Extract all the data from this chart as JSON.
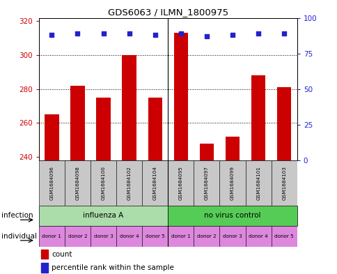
{
  "title": "GDS6063 / ILMN_1800975",
  "samples": [
    "GSM1684096",
    "GSM1684098",
    "GSM1684100",
    "GSM1684102",
    "GSM1684104",
    "GSM1684095",
    "GSM1684097",
    "GSM1684099",
    "GSM1684101",
    "GSM1684103"
  ],
  "counts": [
    265,
    282,
    275,
    300,
    275,
    313,
    248,
    252,
    288,
    281
  ],
  "percentile_ranks": [
    88,
    89,
    89,
    89,
    88,
    89,
    87,
    88,
    89,
    89
  ],
  "ylim_left": [
    238,
    322
  ],
  "ylim_right": [
    0,
    100
  ],
  "yticks_left": [
    240,
    260,
    280,
    300,
    320
  ],
  "yticks_right": [
    0,
    25,
    50,
    75,
    100
  ],
  "bar_color": "#cc0000",
  "dot_color": "#2222cc",
  "infection_groups": [
    {
      "label": "influenza A",
      "start": 0,
      "end": 5,
      "color": "#aaddaa"
    },
    {
      "label": "no virus control",
      "start": 5,
      "end": 10,
      "color": "#55cc55"
    }
  ],
  "individual_labels": [
    "donor 1",
    "donor 2",
    "donor 3",
    "donor 4",
    "donor 5",
    "donor 1",
    "donor 2",
    "donor 3",
    "donor 4",
    "donor 5"
  ],
  "individual_color": "#dd88dd",
  "grid_color": "#000000",
  "bg_color": "#ffffff",
  "left_axis_color": "#cc0000",
  "right_axis_color": "#2222cc",
  "legend_count_label": "count",
  "legend_pct_label": "percentile rank within the sample",
  "infection_row_label": "infection",
  "individual_row_label": "individual",
  "sample_bg_color": "#c8c8c8",
  "bar_width": 0.55
}
